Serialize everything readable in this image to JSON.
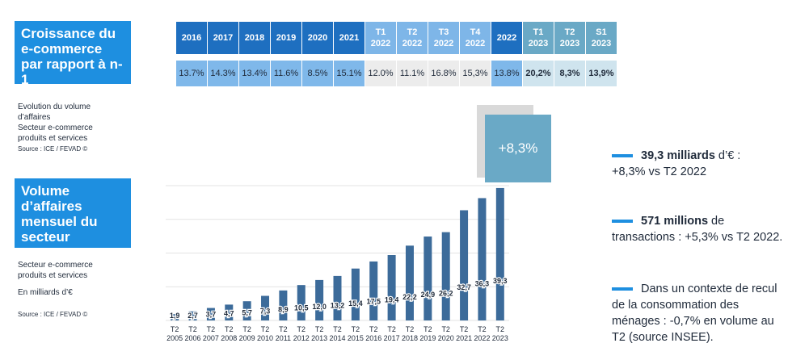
{
  "box1": "Croissance du e-commerce par rapport à n-1",
  "box2": "Volume d’affaires mensuel du secteur",
  "note1": {
    "lines": [
      "Evolution du volume",
      "d’affaires",
      "Secteur e-commerce",
      "produits et services"
    ],
    "source": "Source : ICE / FEVAD ©"
  },
  "note2": {
    "lines": [
      "Secteur e-commerce",
      "produits et services",
      "En milliards d’€"
    ],
    "source": "Source : ICE / FEVAD ©"
  },
  "growth_table": [
    {
      "period": [
        "2016"
      ],
      "value": "13.7%",
      "hdr": "#1e6fc0",
      "bg": "#7fb8ea",
      "bold": false
    },
    {
      "period": [
        "2017"
      ],
      "value": "14.3%",
      "hdr": "#1e6fc0",
      "bg": "#7fb8ea",
      "bold": false
    },
    {
      "period": [
        "2018"
      ],
      "value": "13.4%",
      "hdr": "#1e6fc0",
      "bg": "#7fb8ea",
      "bold": false
    },
    {
      "period": [
        "2019"
      ],
      "value": "11.6%",
      "hdr": "#1e6fc0",
      "bg": "#7fb8ea",
      "bold": false
    },
    {
      "period": [
        "2020"
      ],
      "value": "8.5%",
      "hdr": "#1e6fc0",
      "bg": "#7fb8ea",
      "bold": false
    },
    {
      "period": [
        "2021"
      ],
      "value": "15.1%",
      "hdr": "#1e6fc0",
      "bg": "#7fb8ea",
      "bold": false
    },
    {
      "period": [
        "T1",
        "2022"
      ],
      "value": "12.0%",
      "hdr": "#7eb6e8",
      "bg": "#ececec",
      "bold": false
    },
    {
      "period": [
        "T2",
        "2022"
      ],
      "value": "11.1%",
      "hdr": "#7eb6e8",
      "bg": "#ececec",
      "bold": false
    },
    {
      "period": [
        "T3",
        "2022"
      ],
      "value": "16.8%",
      "hdr": "#7eb6e8",
      "bg": "#ececec",
      "bold": false
    },
    {
      "period": [
        "T4",
        "2022"
      ],
      "value": "15,3%",
      "hdr": "#7eb6e8",
      "bg": "#ececec",
      "bold": false
    },
    {
      "period": [
        "2022"
      ],
      "value": "13.8%",
      "hdr": "#1e6fc0",
      "bg": "#7fb8ea",
      "bold": false
    },
    {
      "period": [
        "T1",
        "2023"
      ],
      "value": "20,2%",
      "hdr": "#6aa9c6",
      "bg": "#cfe4ee",
      "bold": true
    },
    {
      "period": [
        "T2",
        "2023"
      ],
      "value": "8,3%",
      "hdr": "#6aa9c6",
      "bg": "#cfe4ee",
      "bold": true
    },
    {
      "period": [
        "S1",
        "2023"
      ],
      "value": "13,9%",
      "hdr": "#6aa9c6",
      "bg": "#cfe4ee",
      "bold": true
    }
  ],
  "badge": "+8,3%",
  "kpis": [
    {
      "bold": "39,3 milliards",
      "rest": " d’€ :",
      "line2": "+8,3% vs T2 2022"
    },
    {
      "bold": "571 millions",
      "rest": " de",
      "line2": "transactions : +5,3% vs T2 2022."
    },
    {
      "bold": "",
      "rest": "Dans un contexte de recul",
      "line2": "de la consommation des",
      "line3": "ménages : -0,7% en volume au",
      "line4": "T2 (source INSEE)."
    }
  ],
  "chart_data": {
    "type": "bar",
    "bar_color": "#3c6b9a",
    "categories": [
      "T2 2005",
      "T2 2006",
      "T2 2007",
      "T2 2008",
      "T2 2009",
      "T2 2010",
      "T2 2011",
      "T2 2012",
      "T2 2013",
      "T2 2014",
      "T2 2015",
      "T2 2016",
      "T2 2017",
      "T2 2018",
      "T2 2019",
      "T2 2020",
      "T2 2021",
      "T2 2022",
      "T2 2023"
    ],
    "values": [
      1.9,
      2.7,
      3.7,
      4.7,
      5.7,
      7.3,
      8.9,
      10.5,
      12.0,
      13.2,
      15.4,
      17.5,
      19.4,
      22.2,
      24.9,
      26.2,
      32.7,
      36.3,
      39.3
    ],
    "labels": [
      "1,9",
      "2,7",
      "3,7",
      "4,7",
      "5,7",
      "7,3",
      "8,9",
      "10,5",
      "12,0",
      "13,2",
      "15,4",
      "17,5",
      "19,4",
      "22,2",
      "24,9",
      "26,2",
      "32,7",
      "36,3",
      "39,3"
    ],
    "ylim": [
      0,
      40
    ],
    "grid": true
  }
}
